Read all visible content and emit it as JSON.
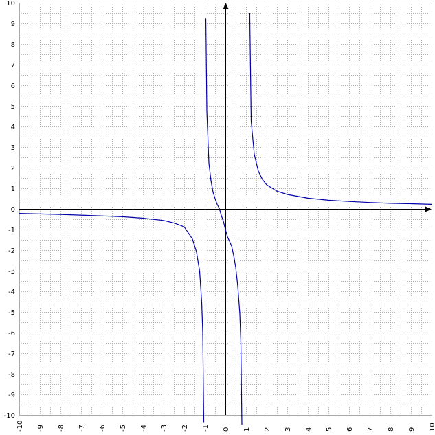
{
  "chart_data": {
    "type": "line",
    "title": "",
    "xlabel": "",
    "ylabel": "",
    "xlim": [
      -10,
      10
    ],
    "ylim": [
      -10,
      10
    ],
    "grid": true,
    "grid_step": 0.5,
    "x_ticks": [
      "-10",
      "-9",
      "-8",
      "-7",
      "-6",
      "-5",
      "-4",
      "-3",
      "-2",
      "-1",
      "0",
      "1",
      "2",
      "3",
      "4",
      "5",
      "6",
      "7",
      "8",
      "9",
      "10"
    ],
    "y_ticks": [
      "10",
      "9",
      "8",
      "7",
      "6",
      "5",
      "4",
      "3",
      "2",
      "1",
      "0",
      "-1",
      "-2",
      "-3",
      "-4",
      "-5",
      "-6",
      "-7",
      "-8",
      "-9",
      "-10"
    ],
    "vertical_asymptotes": [
      -1,
      1
    ],
    "series": [
      {
        "color": "#0000aa",
        "points": [
          [
            -10,
            -0.22
          ],
          [
            -8,
            -0.27
          ],
          [
            -6,
            -0.34
          ],
          [
            -5,
            -0.38
          ],
          [
            -4,
            -0.45
          ],
          [
            -3,
            -0.56
          ],
          [
            -2.5,
            -0.68
          ],
          [
            -2,
            -0.87
          ],
          [
            -1.6,
            -1.46
          ],
          [
            -1.4,
            -2.1
          ],
          [
            -1.25,
            -3.02
          ],
          [
            -1.15,
            -4.54
          ],
          [
            -1.1,
            -5.97
          ],
          [
            -1.05,
            -10.35
          ],
          [
            -0.95,
            9.26
          ],
          [
            -0.9,
            4.74
          ],
          [
            -0.8,
            2.22
          ],
          [
            -0.7,
            1.37
          ],
          [
            -0.6,
            0.81
          ],
          [
            -0.5,
            0.5
          ],
          [
            -0.4,
            0.22
          ],
          [
            -0.3,
            0.03
          ],
          [
            -0.2,
            -0.31
          ],
          [
            -0.1,
            -0.6
          ],
          [
            0,
            -1.0
          ],
          [
            0.1,
            -1.35
          ],
          [
            0.2,
            -1.57
          ],
          [
            0.3,
            -1.8
          ],
          [
            0.4,
            -2.25
          ],
          [
            0.5,
            -2.83
          ],
          [
            0.6,
            -3.75
          ],
          [
            0.7,
            -5.1
          ],
          [
            0.75,
            -6.47
          ],
          [
            0.8,
            -10.47
          ],
          [
            1.18,
            9.5
          ],
          [
            1.25,
            4.25
          ],
          [
            1.4,
            2.65
          ],
          [
            1.6,
            1.82
          ],
          [
            1.8,
            1.42
          ],
          [
            2,
            1.17
          ],
          [
            2.5,
            0.86
          ],
          [
            3,
            0.7
          ],
          [
            4,
            0.52
          ],
          [
            5,
            0.42
          ],
          [
            6,
            0.36
          ],
          [
            7,
            0.31
          ],
          [
            8,
            0.27
          ],
          [
            9,
            0.25
          ],
          [
            10,
            0.22
          ]
        ]
      }
    ]
  }
}
